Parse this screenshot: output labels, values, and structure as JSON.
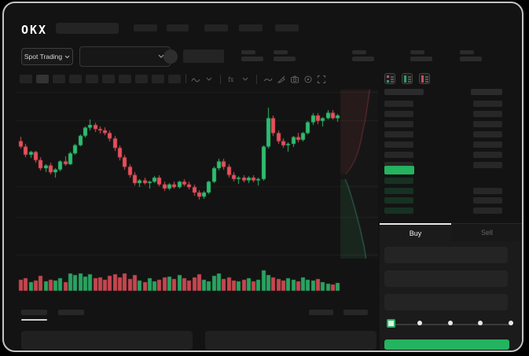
{
  "app": {
    "logo_text": "OKX"
  },
  "colors": {
    "green": "#2ebd6e",
    "red": "#e5505b",
    "bright_green": "#24b35f",
    "frame_border": "#c4c4c4",
    "background": "#131313"
  },
  "header": {
    "nav_item_count": 5
  },
  "market_bar": {
    "market_type_selector": {
      "label": "Spot Trading"
    },
    "pair_dropdown": {
      "selected_value": ""
    },
    "stat_group_count": 5
  },
  "chart_toolbar": {
    "interval_count": 10,
    "active_interval_index": 1,
    "icons": [
      "chart-type-icon",
      "chart-type-chevron-icon",
      "indicators-icon",
      "indicators-chevron-icon",
      "line-tool-icon",
      "draw-pencil-icon",
      "camera-icon",
      "target-icon",
      "fullscreen-icon"
    ]
  },
  "chart_data": {
    "type": "candlestick",
    "title": "",
    "xlabel": "",
    "ylabel": "",
    "axis_labels_visible": false,
    "gridlines_y_pct": [
      1.9,
      15.6,
      47.7,
      62.6,
      80.9
    ],
    "candles_ohlc_pct": [
      [
        63,
        66,
        57,
        59
      ],
      [
        59,
        61,
        51,
        53
      ],
      [
        53,
        56,
        51,
        55
      ],
      [
        55,
        56,
        47,
        49
      ],
      [
        49,
        51,
        41,
        43
      ],
      [
        43,
        46,
        40,
        45
      ],
      [
        45,
        47,
        38,
        40
      ],
      [
        40,
        43,
        36,
        42
      ],
      [
        42,
        49,
        41,
        48
      ],
      [
        48,
        52,
        45,
        46
      ],
      [
        46,
        55,
        45,
        54
      ],
      [
        54,
        61,
        53,
        60
      ],
      [
        60,
        68,
        59,
        67
      ],
      [
        67,
        74,
        66,
        73
      ],
      [
        73,
        79,
        71,
        75
      ],
      [
        75,
        77,
        70,
        72
      ],
      [
        72,
        74,
        69,
        71
      ],
      [
        71,
        73,
        67,
        69
      ],
      [
        69,
        71,
        63,
        65
      ],
      [
        65,
        67,
        56,
        58
      ],
      [
        58,
        60,
        49,
        51
      ],
      [
        51,
        53,
        42,
        44
      ],
      [
        44,
        46,
        36,
        38
      ],
      [
        38,
        40,
        30,
        32
      ],
      [
        32,
        35,
        29,
        34
      ],
      [
        34,
        36,
        31,
        32
      ],
      [
        32,
        34,
        28,
        33
      ],
      [
        33,
        37,
        32,
        36
      ],
      [
        36,
        38,
        30,
        31
      ],
      [
        31,
        33,
        26,
        28
      ],
      [
        28,
        32,
        27,
        31
      ],
      [
        31,
        33,
        28,
        29
      ],
      [
        29,
        34,
        28,
        33
      ],
      [
        33,
        35,
        30,
        31
      ],
      [
        31,
        33,
        27,
        29
      ],
      [
        29,
        31,
        23,
        25
      ],
      [
        25,
        27,
        20,
        22
      ],
      [
        22,
        26,
        20,
        25
      ],
      [
        25,
        34,
        24,
        33
      ],
      [
        33,
        44,
        32,
        43
      ],
      [
        43,
        50,
        41,
        48
      ],
      [
        48,
        50,
        42,
        44
      ],
      [
        44,
        46,
        36,
        38
      ],
      [
        38,
        40,
        33,
        35
      ],
      [
        35,
        37,
        31,
        36
      ],
      [
        36,
        38,
        33,
        34
      ],
      [
        34,
        37,
        32,
        36
      ],
      [
        36,
        38,
        33,
        34
      ],
      [
        34,
        36,
        30,
        35
      ],
      [
        35,
        60,
        34,
        59
      ],
      [
        59,
        88,
        58,
        80
      ],
      [
        80,
        82,
        67,
        69
      ],
      [
        69,
        71,
        61,
        63
      ],
      [
        63,
        65,
        58,
        60
      ],
      [
        60,
        62,
        55,
        61
      ],
      [
        61,
        67,
        59,
        66
      ],
      [
        66,
        69,
        62,
        64
      ],
      [
        64,
        70,
        63,
        69
      ],
      [
        69,
        78,
        68,
        77
      ],
      [
        77,
        84,
        75,
        82
      ],
      [
        82,
        84,
        76,
        78
      ],
      [
        78,
        81,
        74,
        80
      ],
      [
        80,
        86,
        79,
        84
      ],
      [
        84,
        86,
        79,
        80
      ],
      [
        80,
        83,
        77,
        82
      ]
    ],
    "volume_pct": [
      38,
      45,
      30,
      35,
      52,
      32,
      40,
      36,
      44,
      30,
      60,
      55,
      62,
      50,
      58,
      44,
      48,
      38,
      52,
      58,
      46,
      60,
      42,
      55,
      36,
      30,
      44,
      34,
      40,
      46,
      50,
      42,
      55,
      44,
      36,
      48,
      58,
      40,
      34,
      52,
      62,
      42,
      46,
      36,
      32,
      38,
      44,
      33,
      40,
      72,
      55,
      48,
      42,
      36,
      44,
      38,
      33,
      46,
      40,
      35,
      42,
      30,
      26,
      22,
      28
    ],
    "depth": {
      "asks": [
        [
          0.78,
          0.0
        ],
        [
          0.74,
          0.06
        ],
        [
          0.7,
          0.12
        ],
        [
          0.66,
          0.18
        ],
        [
          0.6,
          0.24
        ],
        [
          0.55,
          0.3
        ],
        [
          0.48,
          0.36
        ],
        [
          0.38,
          0.42
        ],
        [
          0.25,
          0.47
        ],
        [
          0.14,
          0.5
        ]
      ],
      "bids": [
        [
          0.13,
          0.53
        ],
        [
          0.22,
          0.58
        ],
        [
          0.3,
          0.64
        ],
        [
          0.38,
          0.7
        ],
        [
          0.45,
          0.76
        ],
        [
          0.52,
          0.82
        ],
        [
          0.58,
          0.88
        ],
        [
          0.63,
          0.93
        ],
        [
          0.68,
          1.0
        ]
      ]
    }
  },
  "orderbook": {
    "view_mode_icons": [
      "book-combined-icon",
      "book-bids-icon",
      "book-asks-icon"
    ],
    "ask_row_count": 7,
    "bid_row_count": 4,
    "bid_amount_row_count": 3,
    "last_price_highlighted": true
  },
  "trade_panel": {
    "tabs": [
      {
        "label": "Buy",
        "active": true
      },
      {
        "label": "Sell",
        "active": false
      }
    ],
    "input_count": 3,
    "slider": {
      "stop_count": 5,
      "active_stop_index": 0
    }
  },
  "bottom_bar": {
    "left_tab_count": 2,
    "active_left_tab_index": 0,
    "right_tab_count": 2,
    "panel_count": 2
  }
}
